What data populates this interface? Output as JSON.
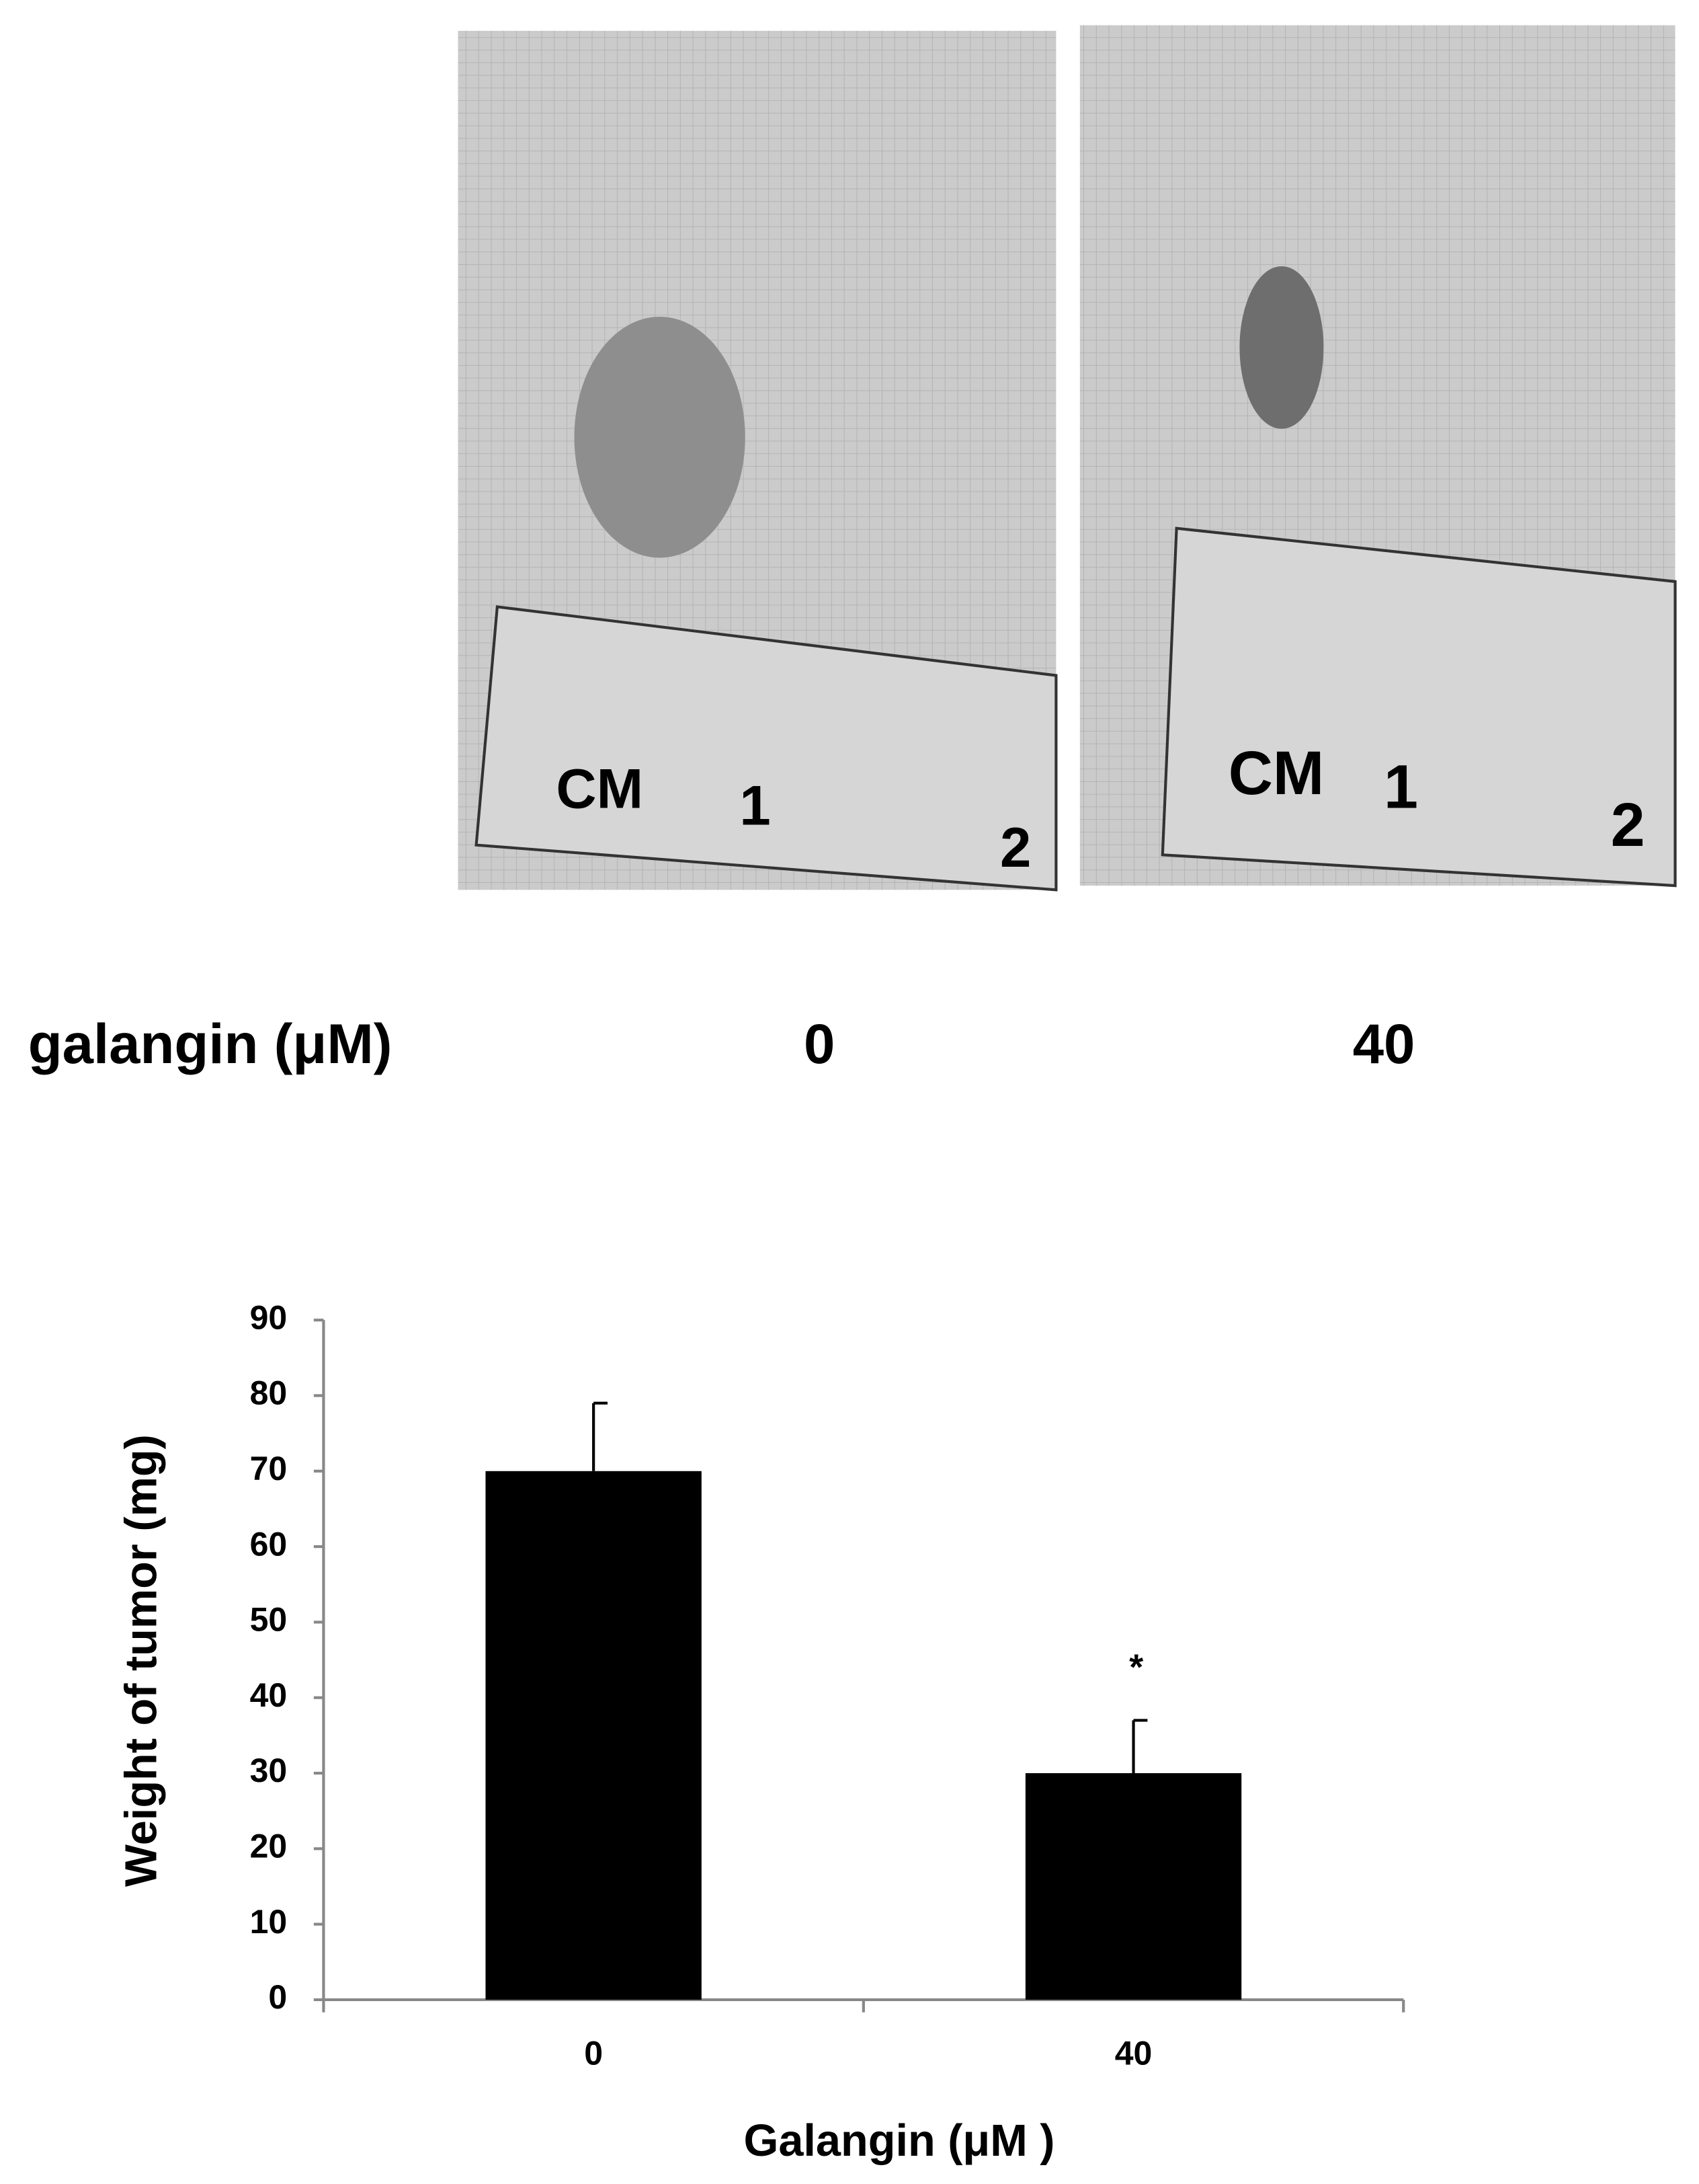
{
  "photo_panel": {
    "row_label": "galangin (μM)",
    "columns": [
      "0",
      "40"
    ],
    "ruler_labels": [
      "CM",
      "1",
      "2"
    ]
  },
  "chart_data": {
    "type": "bar",
    "categories": [
      "0",
      "40"
    ],
    "values": [
      70,
      30
    ],
    "errors": [
      9,
      7
    ],
    "color": "#000000",
    "annotations": [
      {
        "category": "40",
        "text": "*"
      }
    ],
    "ylim": [
      0,
      90
    ],
    "yticks": [
      0,
      10,
      20,
      30,
      40,
      50,
      60,
      70,
      80,
      90
    ],
    "xlabel": "Galangin (μM )",
    "ylabel": "Weight of tumor (mg)"
  }
}
